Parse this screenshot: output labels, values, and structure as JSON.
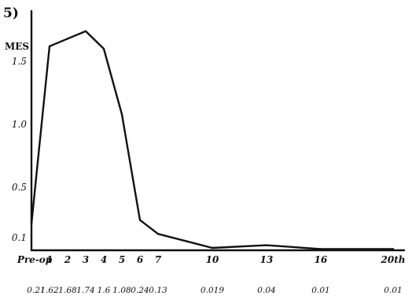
{
  "chart_data": {
    "type": "line",
    "panel_label": "5)",
    "ylabel": "MES",
    "y_ticks": [
      {
        "label": "0.1",
        "value": 0.1
      },
      {
        "label": "0.5",
        "value": 0.5
      },
      {
        "label": "1.0",
        "value": 1.0
      },
      {
        "label": "1.5",
        "value": 1.5
      }
    ],
    "x": [
      0,
      1,
      2,
      3,
      4,
      5,
      6,
      7,
      10,
      13,
      16,
      20
    ],
    "x_tick_labels": [
      "Pre-op",
      "1",
      "2",
      "3",
      "4",
      "5",
      "6",
      "7",
      "10",
      "13",
      "16",
      "20th"
    ],
    "values": [
      0.21,
      1.62,
      1.68,
      1.74,
      1.6,
      1.08,
      0.24,
      0.13,
      0.019,
      0.04,
      0.01,
      0.01
    ],
    "value_labels": [
      "0.21",
      "1.62",
      "1.68",
      "1.74",
      "1.6",
      "1.08",
      "0.24",
      "0.13",
      "0.019",
      "0.04",
      "0.01",
      "0.01"
    ],
    "xlim": [
      0,
      20
    ],
    "ylim": [
      0,
      1.9
    ],
    "grid": false,
    "legend": "none"
  }
}
